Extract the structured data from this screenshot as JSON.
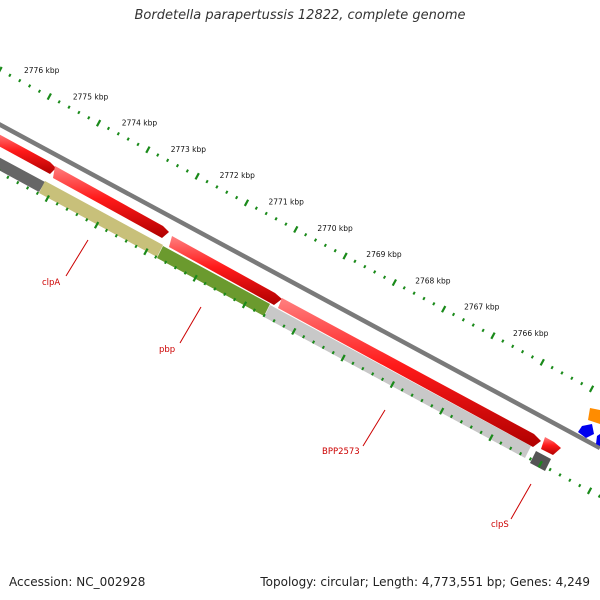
{
  "title": "Bordetella parapertussis 12822, complete genome",
  "footer": {
    "accession": "Accession: NC_002928",
    "summary": "Topology: circular; Length: 4,773,551 bp; Genes: 4,249"
  },
  "ruler": {
    "labels": [
      "2776 kbp",
      "2775 kbp",
      "2774 kbp",
      "2773 kbp",
      "2772 kbp",
      "2771 kbp",
      "2770 kbp",
      "2769 kbp",
      "2768 kbp",
      "2767 kbp",
      "2766 kbp"
    ]
  },
  "genes": [
    {
      "name": "clpA",
      "color": "#c8c07a"
    },
    {
      "name": "pbp",
      "color": "#6b9a2e"
    },
    {
      "name": "BPP2573",
      "color": "#c8c8c8"
    },
    {
      "name": "clpS",
      "color": "#555555"
    }
  ],
  "colors": {
    "forward_strand": "#ff0000",
    "backbone": "#888888",
    "ticks": "#1a8a1a",
    "label": "#cc0000"
  }
}
